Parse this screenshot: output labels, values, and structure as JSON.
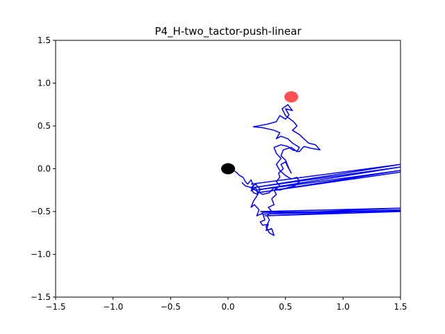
{
  "chart_data": {
    "type": "line",
    "title": "P4_H-two_tactor-push-linear",
    "xlabel": "",
    "ylabel": "",
    "xlim": [
      -1.5,
      1.5
    ],
    "ylim": [
      -1.5,
      1.5
    ],
    "xticks": [
      -1.5,
      -1.0,
      -0.5,
      0.0,
      0.5,
      1.0,
      1.5
    ],
    "yticks": [
      -1.5,
      -1.0,
      -0.5,
      0.0,
      0.5,
      1.0,
      1.5
    ],
    "xtick_labels": [
      "−1.5",
      "−1.0",
      "−0.5",
      "0.0",
      "0.5",
      "1.0",
      "1.5"
    ],
    "ytick_labels": [
      "−1.5",
      "−1.0",
      "−0.5",
      "0.0",
      "0.5",
      "1.0",
      "1.5"
    ],
    "grid": false,
    "markers": [
      {
        "x": 0.0,
        "y": 0.0,
        "color": "#000000",
        "label": "start"
      },
      {
        "x": 0.55,
        "y": 0.84,
        "color": "#ff3333",
        "label": "target"
      }
    ],
    "series": [
      {
        "color": "#0000ff",
        "points": [
          [
            0.0,
            0.0
          ],
          [
            0.02,
            0.02
          ],
          [
            0.05,
            -0.02
          ],
          [
            0.08,
            -0.05
          ],
          [
            0.1,
            -0.08
          ],
          [
            0.13,
            -0.1
          ],
          [
            0.15,
            -0.15
          ],
          [
            0.17,
            -0.18
          ],
          [
            0.2,
            -0.13
          ],
          [
            0.22,
            -0.2
          ],
          [
            0.2,
            -0.26
          ],
          [
            0.24,
            -0.22
          ],
          [
            0.26,
            -0.3
          ],
          [
            0.22,
            -0.28
          ],
          [
            0.2,
            -0.22
          ],
          [
            0.24,
            -0.18
          ],
          [
            0.28,
            -0.24
          ],
          [
            0.25,
            -0.32
          ],
          [
            0.22,
            -0.38
          ],
          [
            0.2,
            -0.45
          ],
          [
            0.23,
            -0.42
          ],
          [
            0.27,
            -0.48
          ],
          [
            0.25,
            -0.55
          ],
          [
            0.3,
            -0.52
          ],
          [
            0.32,
            -0.6
          ],
          [
            0.28,
            -0.62
          ],
          [
            0.3,
            -0.66
          ],
          [
            0.35,
            -0.65
          ],
          [
            0.33,
            -0.72
          ],
          [
            0.38,
            -0.7
          ],
          [
            0.4,
            -0.78
          ],
          [
            0.36,
            -0.75
          ],
          [
            0.33,
            -0.68
          ],
          [
            0.36,
            -0.6
          ],
          [
            0.34,
            -0.55
          ],
          [
            0.38,
            -0.5
          ],
          [
            0.35,
            -0.45
          ],
          [
            0.4,
            -0.42
          ],
          [
            0.38,
            -0.35
          ],
          [
            0.42,
            -0.3
          ],
          [
            0.4,
            -0.25
          ],
          [
            0.45,
            -0.2
          ],
          [
            0.42,
            -0.15
          ],
          [
            0.45,
            -0.1
          ],
          [
            0.44,
            -0.05
          ],
          [
            0.48,
            0.0
          ],
          [
            0.46,
            0.05
          ],
          [
            0.5,
            0.08
          ],
          [
            0.52,
            0.02
          ],
          [
            0.55,
            -0.05
          ],
          [
            0.53,
            0.0
          ],
          [
            0.5,
            0.1
          ],
          [
            0.46,
            0.15
          ],
          [
            0.48,
            0.22
          ],
          [
            0.55,
            0.25
          ],
          [
            0.6,
            0.2
          ],
          [
            0.62,
            0.25
          ],
          [
            0.56,
            0.3
          ],
          [
            0.52,
            0.35
          ],
          [
            0.46,
            0.38
          ],
          [
            0.42,
            0.35
          ],
          [
            0.45,
            0.42
          ],
          [
            0.4,
            0.45
          ],
          [
            0.3,
            0.48
          ],
          [
            0.22,
            0.49
          ],
          [
            0.34,
            0.52
          ],
          [
            0.42,
            0.55
          ],
          [
            0.45,
            0.62
          ],
          [
            0.5,
            0.58
          ],
          [
            0.53,
            0.63
          ],
          [
            0.5,
            0.7
          ],
          [
            0.56,
            0.68
          ],
          [
            0.52,
            0.75
          ],
          [
            0.47,
            0.7
          ],
          [
            0.5,
            0.62
          ],
          [
            0.57,
            0.55
          ],
          [
            0.6,
            0.5
          ],
          [
            0.56,
            0.45
          ],
          [
            0.62,
            0.4
          ],
          [
            0.66,
            0.35
          ],
          [
            0.7,
            0.3
          ],
          [
            0.76,
            0.28
          ],
          [
            0.8,
            0.22
          ],
          [
            0.72,
            0.24
          ],
          [
            0.66,
            0.26
          ],
          [
            0.62,
            0.2
          ],
          [
            0.56,
            0.22
          ],
          [
            0.52,
            0.26
          ],
          [
            0.46,
            0.28
          ],
          [
            0.4,
            0.25
          ],
          [
            0.42,
            0.18
          ],
          [
            0.46,
            0.12
          ],
          [
            0.42,
            0.05
          ],
          [
            0.45,
            -0.02
          ],
          [
            0.5,
            -0.08
          ],
          [
            0.55,
            -0.12
          ],
          [
            0.6,
            -0.1
          ],
          [
            0.62,
            -0.15
          ],
          [
            0.58,
            -0.2
          ],
          [
            0.52,
            -0.22
          ],
          [
            0.45,
            -0.25
          ],
          [
            0.4,
            -0.22
          ],
          [
            0.36,
            -0.28
          ],
          [
            0.3,
            -0.3
          ],
          [
            0.25,
            -0.26
          ],
          [
            0.2,
            -0.22
          ],
          [
            0.15,
            -0.2
          ],
          [
            0.12,
            -0.16
          ]
        ]
      },
      {
        "color": "#0000ff",
        "points": [
          [
            0.2,
            -0.18
          ],
          [
            1.5,
            0.05
          ],
          [
            0.22,
            -0.22
          ],
          [
            1.5,
            0.02
          ],
          [
            0.24,
            -0.25
          ],
          [
            1.5,
            -0.02
          ],
          [
            0.26,
            -0.28
          ],
          [
            1.5,
            -0.04
          ]
        ]
      },
      {
        "color": "#0000ff",
        "points": [
          [
            0.28,
            -0.5
          ],
          [
            1.5,
            -0.46
          ],
          [
            0.3,
            -0.53
          ],
          [
            1.5,
            -0.48
          ],
          [
            0.32,
            -0.55
          ],
          [
            1.5,
            -0.5
          ],
          [
            0.3,
            -0.51
          ],
          [
            1.5,
            -0.49
          ]
        ]
      }
    ]
  }
}
